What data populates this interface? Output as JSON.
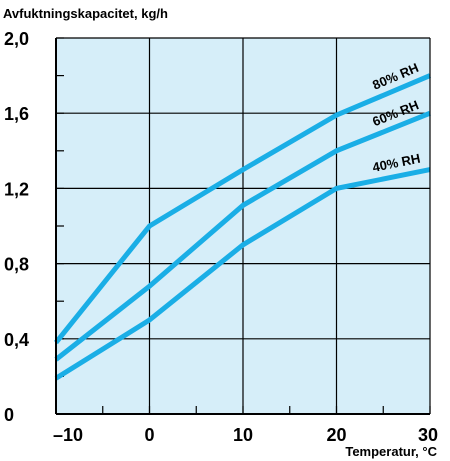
{
  "chart_data": {
    "type": "line",
    "ylabel": "Avfuktningskapacitet,  kg/h",
    "xlabel": "Temperatur, °C",
    "x_ticks": [
      "–10",
      "0",
      "10",
      "20",
      "30"
    ],
    "y_ticks": [
      "0",
      "0,4",
      "0,8",
      "1,2",
      "1,6",
      "2,0"
    ],
    "xlim": [
      -10,
      30
    ],
    "ylim": [
      0,
      2.0
    ],
    "grid": true,
    "colors": {
      "plot_bg": "#d6eef9",
      "series": "#1aaee6",
      "grid": "#000000"
    },
    "series": [
      {
        "name": "80% RH",
        "x": [
          -10,
          0,
          10,
          20,
          30
        ],
        "y": [
          0.38,
          1.0,
          1.3,
          1.59,
          1.8
        ]
      },
      {
        "name": "60% RH",
        "x": [
          -10,
          0,
          10,
          20,
          30
        ],
        "y": [
          0.29,
          0.68,
          1.11,
          1.4,
          1.6
        ]
      },
      {
        "name": "40% RH",
        "x": [
          -10,
          0,
          10,
          20,
          30
        ],
        "y": [
          0.19,
          0.5,
          0.9,
          1.2,
          1.3
        ]
      }
    ]
  }
}
